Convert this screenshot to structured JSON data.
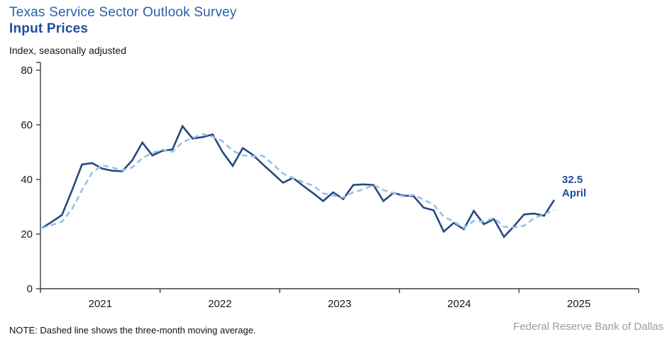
{
  "header": {
    "title": "Texas Service Sector Outlook Survey",
    "subtitle": "Input Prices",
    "unit_label": "Index, seasonally adjusted"
  },
  "annotation": {
    "value": "32.5",
    "month": "April"
  },
  "note": "NOTE: Dashed line shows the three-month moving average.",
  "source": "Federal Reserve Bank of Dallas",
  "colors": {
    "title_blue": "#2C5FAC",
    "subtitle_navy": "#1E4E9C",
    "line_navy": "#26497E",
    "ma_light_blue": "#9CBFE8",
    "axis": "#3d3d3d",
    "tick_label": "#1a1a1a",
    "source_gray": "#9B9B9B"
  },
  "chart_data": {
    "type": "line",
    "title": "Texas Service Sector Outlook Survey — Input Prices",
    "ylabel": "Index, seasonally adjusted",
    "ylim": [
      0,
      80
    ],
    "yticks": [
      0,
      20,
      40,
      60,
      80
    ],
    "x_year_labels": [
      "2021",
      "2022",
      "2023",
      "2024",
      "2025"
    ],
    "start_month": "2021-01",
    "end_month": "2025-04",
    "grid": false,
    "legend": "none (dashed line explained in note)",
    "series": [
      {
        "name": "Input prices index (monthly)",
        "style": "solid",
        "values": [
          22.2,
          24.5,
          27.0,
          36.0,
          45.5,
          46.0,
          44.0,
          43.2,
          43.0,
          47.0,
          53.5,
          48.8,
          50.5,
          51.0,
          59.5,
          55.0,
          55.5,
          56.5,
          50.0,
          45.0,
          51.5,
          49.0,
          45.5,
          42.2,
          38.8,
          40.6,
          37.7,
          35.0,
          32.1,
          35.3,
          32.8,
          38.0,
          38.2,
          38.0,
          32.1,
          35.1,
          34.1,
          33.9,
          29.7,
          28.7,
          20.9,
          24.1,
          21.8,
          28.5,
          23.6,
          25.5,
          19.0,
          22.9,
          27.2,
          27.5,
          26.7,
          32.5
        ]
      },
      {
        "name": "Three-month moving average",
        "style": "dashed",
        "derived": "3-month trailing moving average of the monthly series"
      }
    ],
    "last_point": {
      "month": "April 2025",
      "value": 32.5
    }
  }
}
